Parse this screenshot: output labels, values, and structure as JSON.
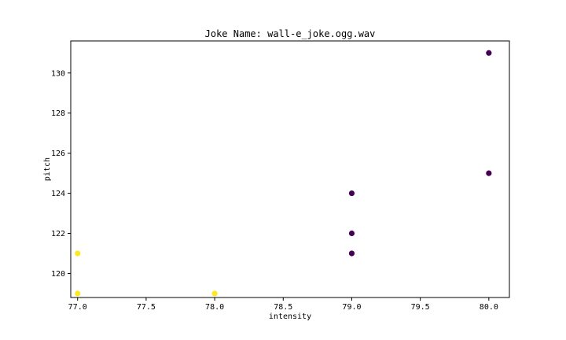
{
  "chart_data": {
    "type": "scatter",
    "title": "Joke Name: wall-e_joke.ogg.wav",
    "xlabel": "intensity",
    "ylabel": "pitch",
    "xlim": [
      76.95,
      80.15
    ],
    "ylim": [
      118.8,
      131.6
    ],
    "xticks": [
      "77.0",
      "77.5",
      "78.0",
      "78.5",
      "79.0",
      "79.5",
      "80.0"
    ],
    "yticks": [
      "120",
      "122",
      "124",
      "126",
      "128",
      "130"
    ],
    "grid": false,
    "colors": {
      "cluster_0": "#440154",
      "cluster_1": "#fde725"
    },
    "points": [
      {
        "x": 77,
        "y": 121,
        "cluster": 1
      },
      {
        "x": 77,
        "y": 119,
        "cluster": 1
      },
      {
        "x": 78,
        "y": 119,
        "cluster": 1
      },
      {
        "x": 79,
        "y": 124,
        "cluster": 0
      },
      {
        "x": 79,
        "y": 122,
        "cluster": 0
      },
      {
        "x": 79,
        "y": 121,
        "cluster": 0
      },
      {
        "x": 80,
        "y": 131,
        "cluster": 0
      },
      {
        "x": 80,
        "y": 125,
        "cluster": 0
      }
    ]
  }
}
